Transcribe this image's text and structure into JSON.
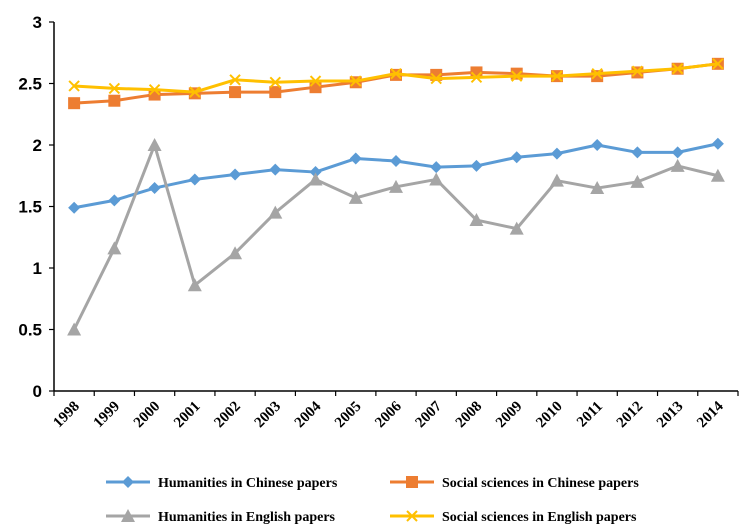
{
  "chart_data": {
    "type": "line",
    "title": "",
    "xlabel": "",
    "ylabel": "",
    "ylim": [
      0,
      3
    ],
    "yticks": [
      "0",
      "0.5",
      "1",
      "1.5",
      "2",
      "2.5",
      "3"
    ],
    "categories": [
      "1998",
      "1999",
      "2000",
      "2001",
      "2002",
      "2003",
      "2004",
      "2005",
      "2006",
      "2007",
      "2008",
      "2009",
      "2010",
      "2011",
      "2012",
      "2013",
      "2014"
    ],
    "grid": false,
    "legend_position": "bottom",
    "series": [
      {
        "name": "Humanities in Chinese papers",
        "color": "#5B9BD5",
        "marker": "diamond",
        "values": [
          1.49,
          1.55,
          1.65,
          1.72,
          1.76,
          1.8,
          1.78,
          1.89,
          1.87,
          1.82,
          1.83,
          1.9,
          1.93,
          2.0,
          1.94,
          1.94,
          2.01
        ]
      },
      {
        "name": "Social sciences in Chinese papers",
        "color": "#ED7D31",
        "marker": "square",
        "values": [
          2.34,
          2.36,
          2.41,
          2.42,
          2.43,
          2.43,
          2.47,
          2.51,
          2.57,
          2.57,
          2.59,
          2.58,
          2.56,
          2.56,
          2.59,
          2.62,
          2.66
        ]
      },
      {
        "name": "Humanities in English papers",
        "color": "#A5A5A5",
        "marker": "triangle",
        "values": [
          0.5,
          1.16,
          2.0,
          0.86,
          1.12,
          1.45,
          1.72,
          1.57,
          1.66,
          1.72,
          1.39,
          1.32,
          1.71,
          1.65,
          1.7,
          1.83,
          1.75
        ]
      },
      {
        "name": "Social sciences in English papers",
        "color": "#FFC000",
        "marker": "x",
        "values": [
          2.48,
          2.46,
          2.45,
          2.43,
          2.53,
          2.51,
          2.52,
          2.52,
          2.58,
          2.54,
          2.55,
          2.56,
          2.56,
          2.58,
          2.6,
          2.62,
          2.66
        ]
      }
    ]
  }
}
